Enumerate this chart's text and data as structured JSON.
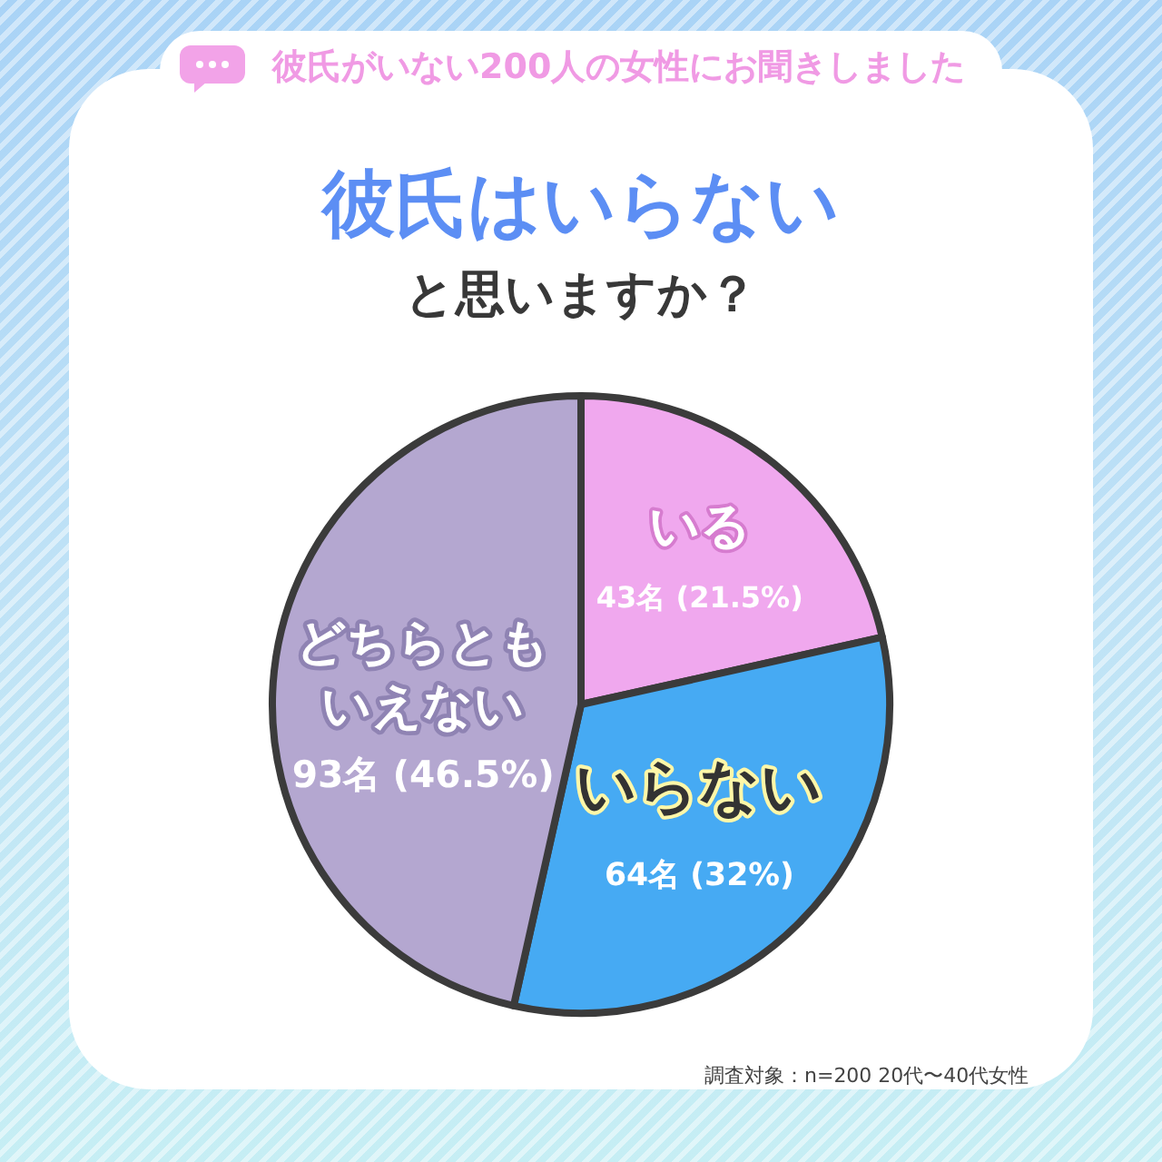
{
  "chart_data": {
    "type": "pie",
    "title": "彼氏はいらない",
    "subtitle": "と思いますか？",
    "annotations": [
      "彼氏がいない200人の女性にお聞きしました",
      "調査対象：n=200 20代〜40代女性"
    ],
    "categories": [
      "いる",
      "いらない",
      "どちらともいえない"
    ],
    "values": [
      43,
      64,
      93
    ],
    "value_labels": [
      "43名 (21.5%)",
      "64名 (32%)",
      "93名 (46.5%)"
    ],
    "colors": [
      "#f0a8ee",
      "#46aaf3",
      "#b4a7d0"
    ]
  }
}
